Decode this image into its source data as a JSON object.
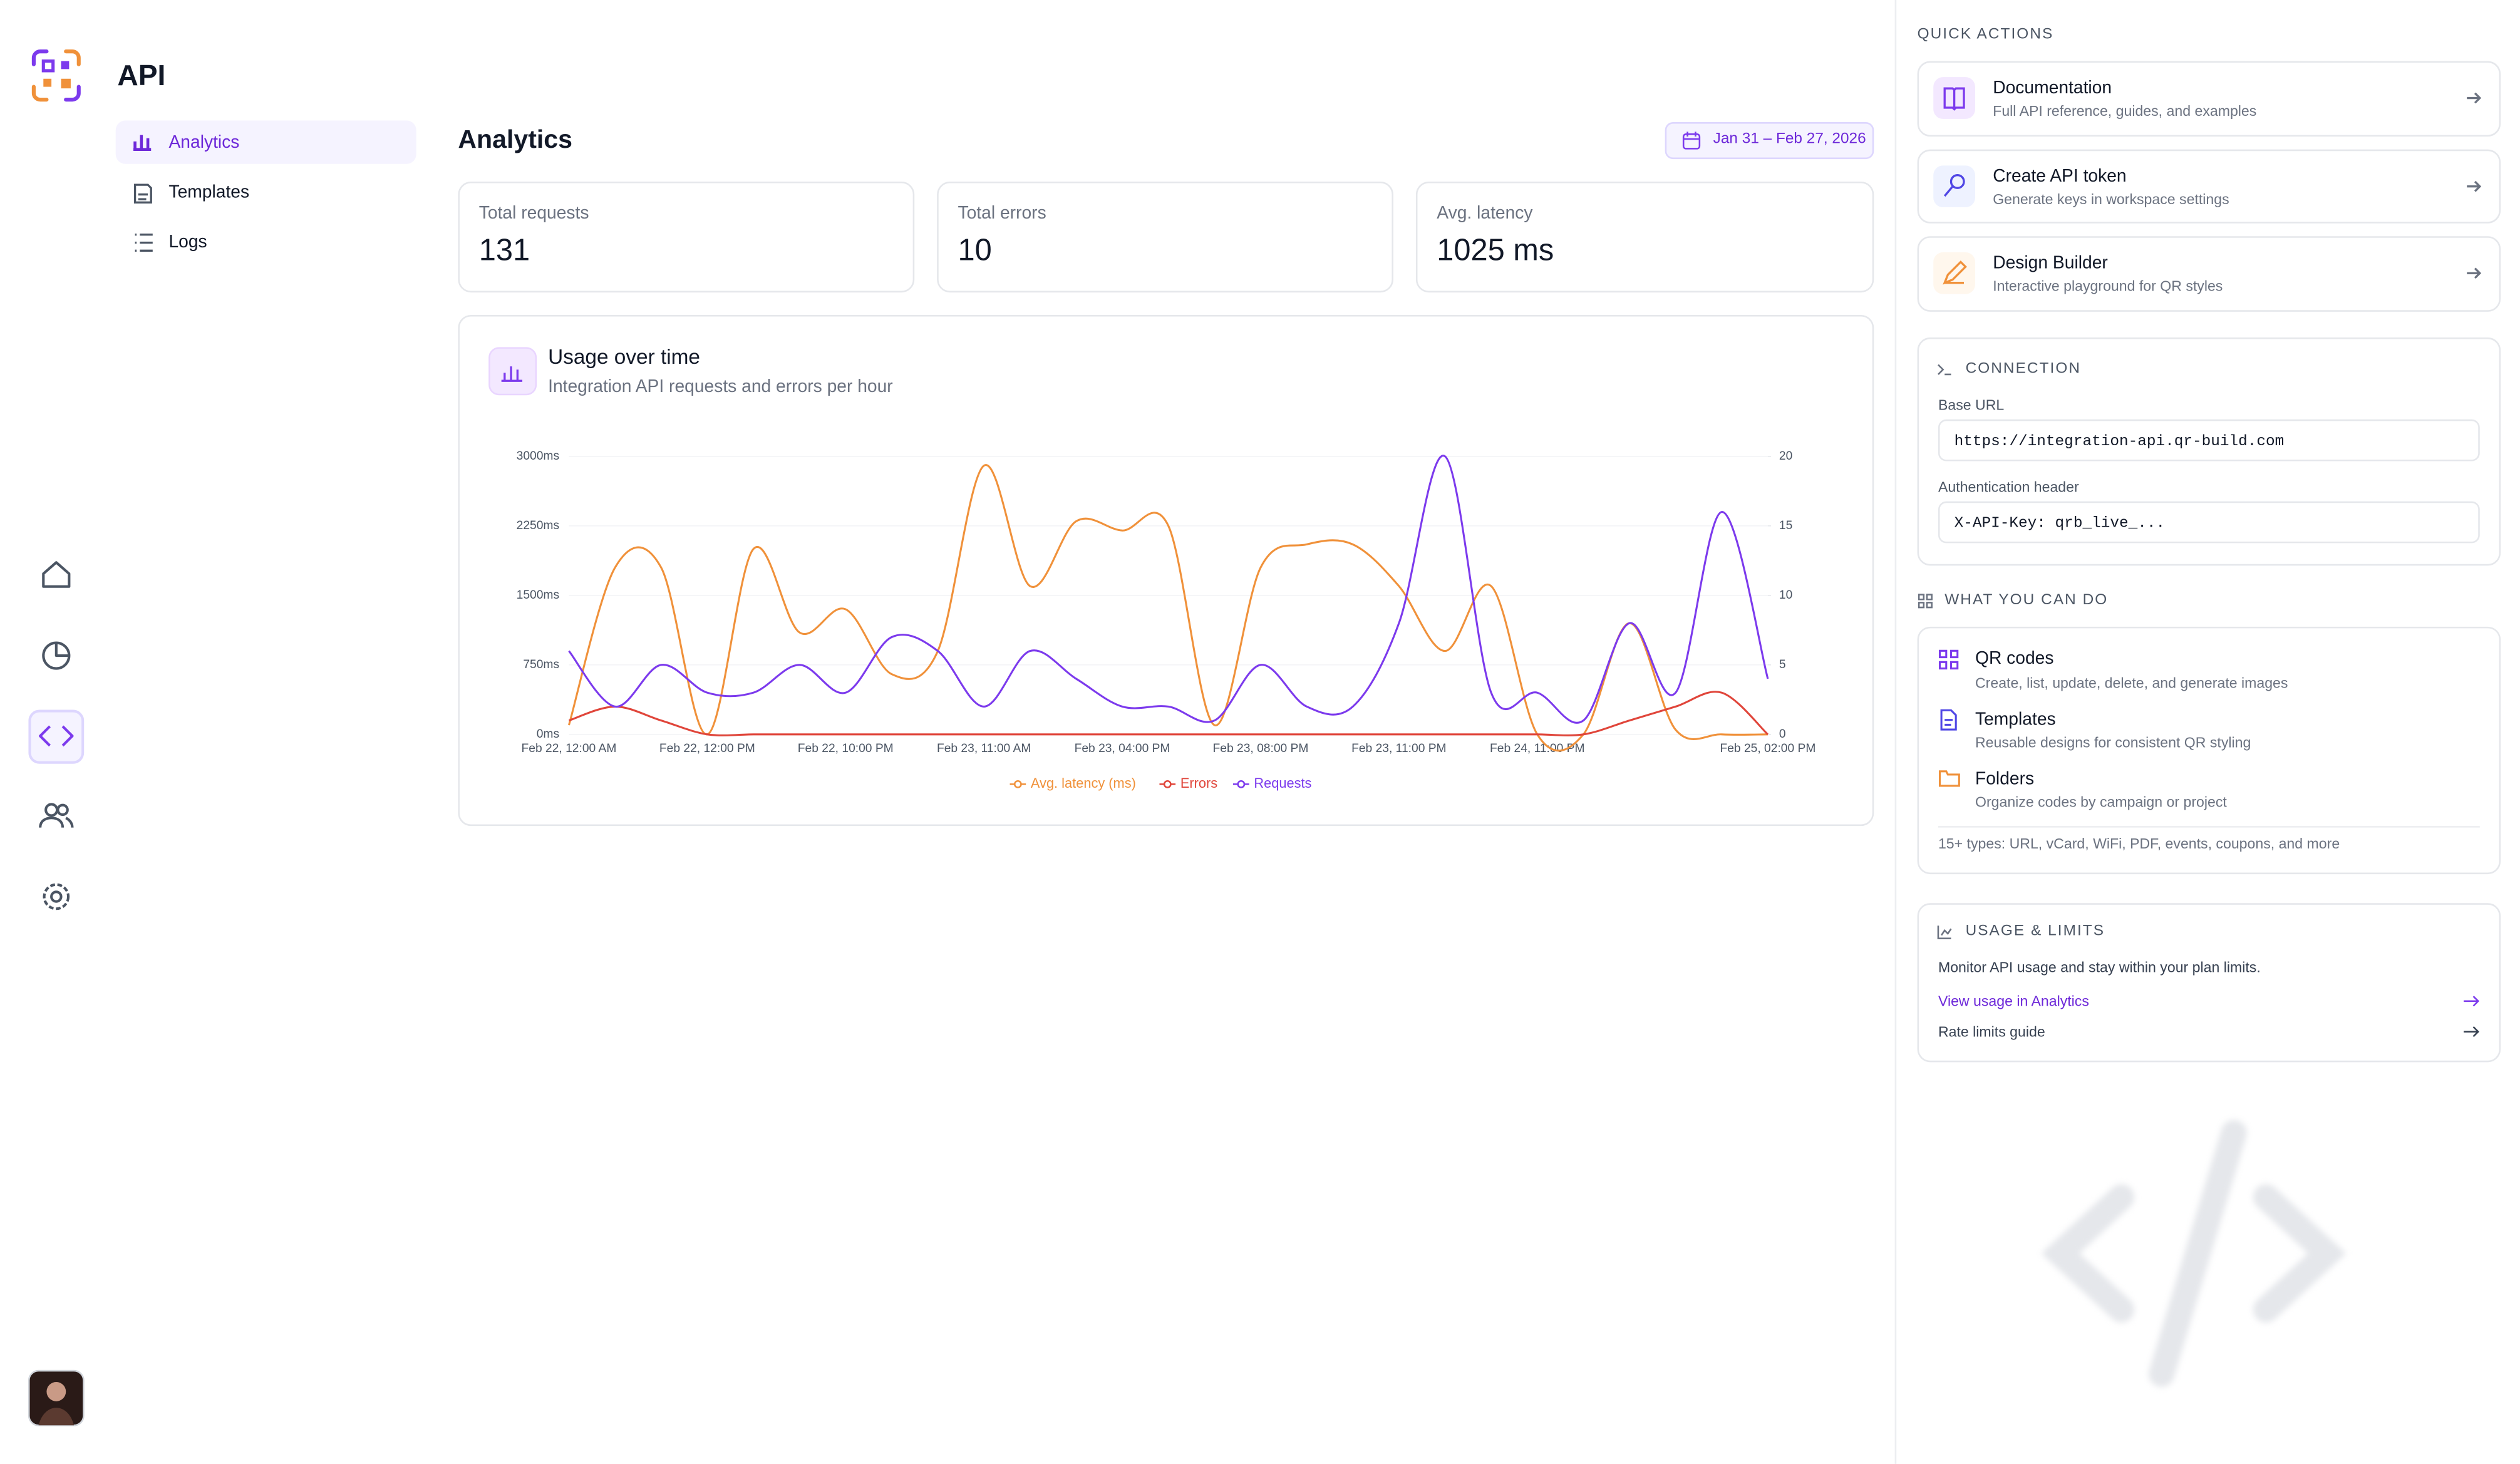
{
  "app": {
    "title": "API"
  },
  "nav": [
    "Analytics",
    "Templates",
    "Logs"
  ],
  "page": {
    "title": "Analytics",
    "date_range": "Jan 31 – Feb 27, 2026"
  },
  "stats": [
    {
      "label": "Total requests",
      "value": 131
    },
    {
      "label": "Total errors",
      "value": 10
    },
    {
      "label": "Avg. latency",
      "value": "1025 ms"
    }
  ],
  "chart_data": {
    "type": "line",
    "title": "Usage over time",
    "subtitle": "Integration API requests and errors per hour",
    "categories": [
      "Feb 22, 12:00 AM",
      null,
      null,
      "Feb 22, 12:00 PM",
      null,
      null,
      "Feb 22, 10:00 PM",
      null,
      null,
      "Feb 23, 11:00 AM",
      null,
      null,
      "Feb 23, 04:00 PM",
      null,
      null,
      "Feb 23, 08:00 PM",
      null,
      null,
      "Feb 23, 11:00 PM",
      null,
      null,
      "Feb 24, 11:00 PM",
      null,
      null,
      null,
      null,
      "Feb 25, 02:00 PM"
    ],
    "series": [
      {
        "name": "Avg. latency (ms)",
        "color": "#f0913a",
        "axis": "y",
        "values": [
          100,
          1800,
          1800,
          0,
          2000,
          1100,
          1350,
          650,
          900,
          2900,
          1600,
          2300,
          2200,
          2250,
          100,
          1800,
          2050,
          2050,
          1600,
          900,
          1600,
          0,
          0,
          1200,
          50,
          0,
          0
        ]
      },
      {
        "name": "Errors",
        "color": "#e0453a",
        "axis": "y2",
        "values": [
          1,
          2,
          1,
          0,
          0,
          0,
          0,
          0,
          0,
          0,
          0,
          0,
          0,
          0,
          0,
          0,
          0,
          0,
          0,
          0,
          0,
          0,
          0,
          1,
          2,
          3,
          0
        ]
      },
      {
        "name": "Requests",
        "color": "#7c3aed",
        "axis": "y2",
        "values": [
          6,
          2,
          5,
          3,
          3,
          5,
          3,
          7,
          6,
          2,
          6,
          4,
          2,
          2,
          1,
          5,
          2,
          2,
          8,
          20,
          3,
          3,
          1,
          8,
          3,
          16,
          4
        ]
      }
    ],
    "ylim": [
      0,
      3000
    ],
    "yticks": [
      {
        "value": 0,
        "label": "0ms"
      },
      {
        "value": 750,
        "label": "750ms"
      },
      {
        "value": 1500,
        "label": "1500ms"
      },
      {
        "value": 2250,
        "label": "2250ms"
      },
      {
        "value": 3000,
        "label": "3000ms"
      }
    ],
    "y2lim": [
      0,
      20
    ],
    "y2ticks": [
      0,
      5,
      10,
      15,
      20
    ],
    "grid": true,
    "legend": "bottom"
  },
  "quick_actions": {
    "heading": "QUICK ACTIONS",
    "items": [
      {
        "title": "Documentation",
        "desc": "Full API reference, guides, and examples"
      },
      {
        "title": "Create API token",
        "desc": "Generate keys in workspace settings"
      },
      {
        "title": "Design Builder",
        "desc": "Interactive playground for QR styles"
      }
    ]
  },
  "connection": {
    "heading": "CONNECTION",
    "base_url_label": "Base URL",
    "base_url": "https://integration-api.qr-build.com",
    "auth_label": "Authentication header",
    "auth": "X-API-Key: qrb_live_..."
  },
  "capabilities": {
    "heading": "WHAT YOU CAN DO",
    "items": [
      {
        "title": "QR codes",
        "desc": "Create, list, update, delete, and generate images"
      },
      {
        "title": "Templates",
        "desc": "Reusable designs for consistent QR styling"
      },
      {
        "title": "Folders",
        "desc": "Organize codes by campaign or project"
      }
    ],
    "note": "15+ types: URL, vCard, WiFi, PDF, events, coupons, and more"
  },
  "usage": {
    "heading": "USAGE & LIMITS",
    "text": "Monitor API usage and stay within your plan limits.",
    "links": [
      "View usage in Analytics",
      "Rate limits guide"
    ]
  }
}
